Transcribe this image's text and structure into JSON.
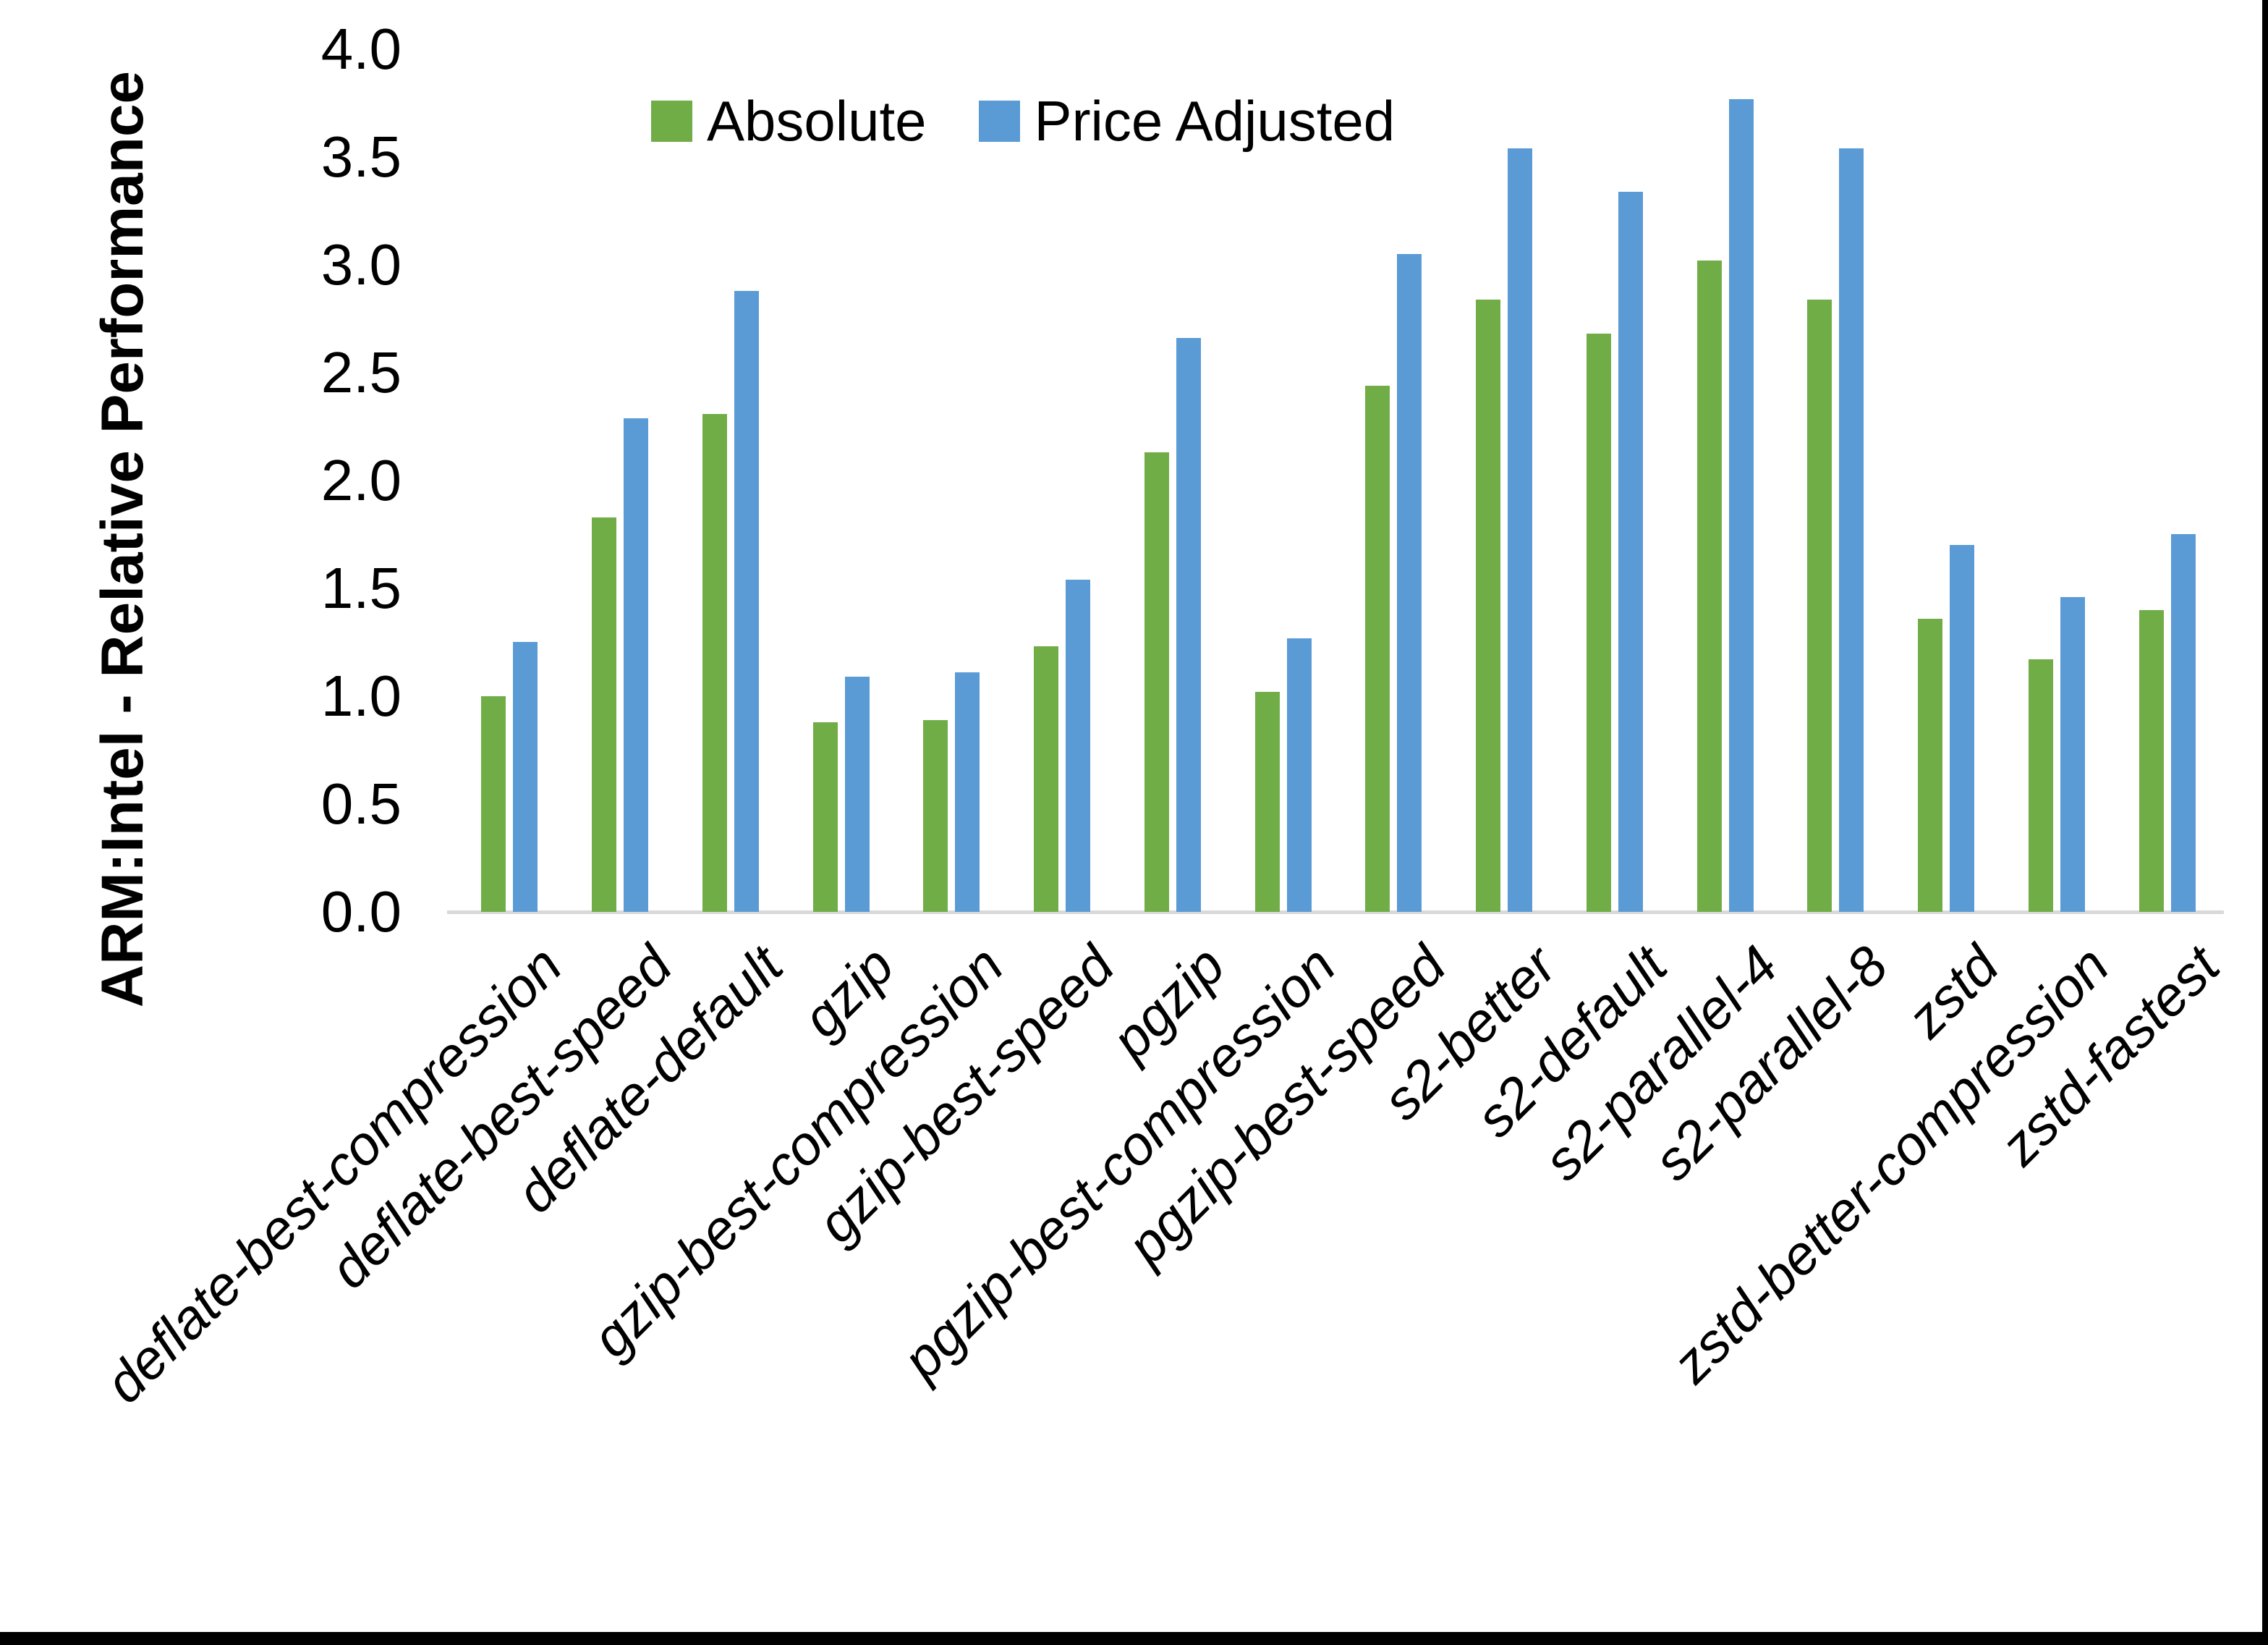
{
  "chart_data": {
    "type": "bar",
    "title": "",
    "ylabel": "ARM:Intel - Relative Performance",
    "xlabel": "",
    "ylim": [
      0.0,
      4.0
    ],
    "ytick_step": 0.5,
    "yticks": [
      "0.0",
      "0.5",
      "1.0",
      "1.5",
      "2.0",
      "2.5",
      "3.0",
      "3.5",
      "4.0"
    ],
    "grid": "off",
    "legend_position": "top-center",
    "categories": [
      "deflate-best-compression",
      "deflate-best-speed",
      "deflate-default",
      "gzip",
      "gzip-best-compression",
      "gzip-best-speed",
      "pgzip",
      "pgzip-best-compression",
      "pgzip-best-speed",
      "s2-better",
      "s2-default",
      "s2-parallel-4",
      "s2-parallel-8",
      "zstd",
      "zstd-better-compression",
      "zstd-fastest"
    ],
    "series": [
      {
        "name": "Absolute",
        "color": "#70AD47",
        "values": [
          1.0,
          1.83,
          2.31,
          0.88,
          0.89,
          1.23,
          2.13,
          1.02,
          2.44,
          2.84,
          2.68,
          3.02,
          2.84,
          1.36,
          1.17,
          1.4
        ]
      },
      {
        "name": "Price Adjusted",
        "color": "#5B9BD5",
        "values": [
          1.25,
          2.29,
          2.88,
          1.09,
          1.11,
          1.54,
          2.66,
          1.27,
          3.05,
          3.54,
          3.34,
          3.77,
          3.54,
          1.7,
          1.46,
          1.75
        ]
      }
    ],
    "axis_line_color": "#D9D9D9"
  }
}
